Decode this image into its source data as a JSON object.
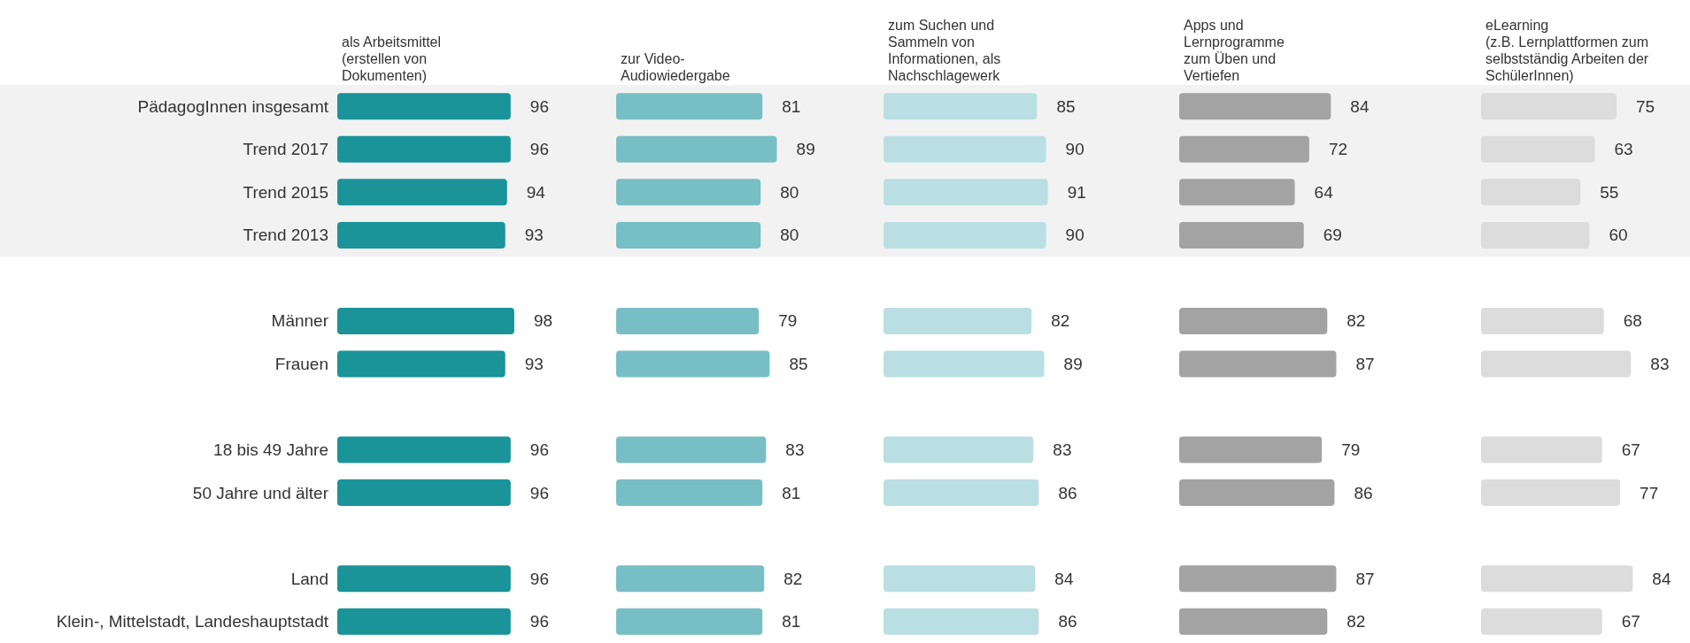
{
  "chart_data": [
    {
      "type": "bar",
      "orientation": "horizontal",
      "title": "als Arbeitsmittel\n(erstellen von\nDokumenten)",
      "categories": [
        "PädagogInnen insgesamt",
        "Trend 2017",
        "Trend 2015",
        "Trend 2013",
        null,
        "Männer",
        "Frauen",
        null,
        "18 bis 49 Jahre",
        "50 Jahre und älter",
        null,
        "Land",
        "Klein-, Mittelstadt, Landeshauptstadt"
      ],
      "values": [
        96,
        96,
        94,
        93,
        null,
        98,
        93,
        null,
        96,
        96,
        null,
        96,
        96
      ],
      "color": "#1a9399",
      "data_labels": true,
      "tick_labels": "y",
      "bands": [
        {
          "axis": "y",
          "from": "PädagogInnen insgesamt",
          "to": "Trend 2013",
          "color": "#f2f2f2"
        }
      ]
    },
    {
      "type": "bar",
      "orientation": "horizontal",
      "title": "zur Video-\nAudiowiedergabe",
      "categories": [
        "PädagogInnen insgesamt",
        "Trend 2017",
        "Trend 2015",
        "Trend 2013",
        null,
        "Männer",
        "Frauen",
        null,
        "18 bis 49 Jahre",
        "50 Jahre und älter",
        null,
        "Land",
        "Klein-, Mittelstadt, Landeshauptstadt"
      ],
      "values": [
        81,
        89,
        80,
        80,
        null,
        79,
        85,
        null,
        83,
        81,
        null,
        82,
        81
      ],
      "color": "#78bfc5",
      "data_labels": true,
      "tick_labels": false,
      "bands": [
        {
          "axis": "y",
          "from": "PädagogInnen insgesamt",
          "to": "Trend 2013",
          "color": "#f2f2f2"
        }
      ]
    },
    {
      "type": "bar",
      "orientation": "horizontal",
      "title": "zum Suchen und\nSammeln von\nInformationen, als\nNachschlagewerk",
      "categories": [
        "PädagogInnen insgesamt",
        "Trend 2017",
        "Trend 2015",
        "Trend 2013",
        null,
        "Männer",
        "Frauen",
        null,
        "18 bis 49 Jahre",
        "50 Jahre und älter",
        null,
        "Land",
        "Klein-, Mittelstadt, Landeshauptstadt"
      ],
      "values": [
        85,
        90,
        91,
        90,
        null,
        82,
        89,
        null,
        83,
        86,
        null,
        84,
        86
      ],
      "color": "#badfe2",
      "data_labels": true,
      "tick_labels": false,
      "bands": [
        {
          "axis": "y",
          "from": "PädagogInnen insgesamt",
          "to": "Trend 2013",
          "color": "#f2f2f2"
        }
      ]
    },
    {
      "type": "bar",
      "orientation": "horizontal",
      "title": "Apps und\nLernprogramme\nzum Üben und\nVertiefen",
      "categories": [
        "PädagogInnen insgesamt",
        "Trend 2017",
        "Trend 2015",
        "Trend 2013",
        null,
        "Männer",
        "Frauen",
        null,
        "18 bis 49 Jahre",
        "50 Jahre und älter",
        null,
        "Land",
        "Klein-, Mittelstadt, Landeshauptstadt"
      ],
      "values": [
        84,
        72,
        64,
        69,
        null,
        82,
        87,
        null,
        79,
        86,
        null,
        87,
        82
      ],
      "color": "#a3a3a3",
      "data_labels": true,
      "tick_labels": false,
      "bands": [
        {
          "axis": "y",
          "from": "PädagogInnen insgesamt",
          "to": "Trend 2013",
          "color": "#f2f2f2"
        }
      ]
    },
    {
      "type": "bar",
      "orientation": "horizontal",
      "title": "eLearning\n(z.B. Lernplattformen zum\nselbstständig Arbeiten der\nSchülerInnen)",
      "categories": [
        "PädagogInnen insgesamt",
        "Trend 2017",
        "Trend 2015",
        "Trend 2013",
        null,
        "Männer",
        "Frauen",
        null,
        "18 bis 49 Jahre",
        "50 Jahre und älter",
        null,
        "Land",
        "Klein-, Mittelstadt, Landeshauptstadt"
      ],
      "values": [
        75,
        63,
        55,
        60,
        null,
        68,
        83,
        null,
        67,
        77,
        null,
        84,
        67
      ],
      "color": "#dcdcdc",
      "data_labels": true,
      "tick_labels": false,
      "bands": [
        {
          "axis": "y",
          "from": "PädagogInnen insgesamt",
          "to": "Trend 2013",
          "color": "#f2f2f2"
        }
      ]
    }
  ]
}
